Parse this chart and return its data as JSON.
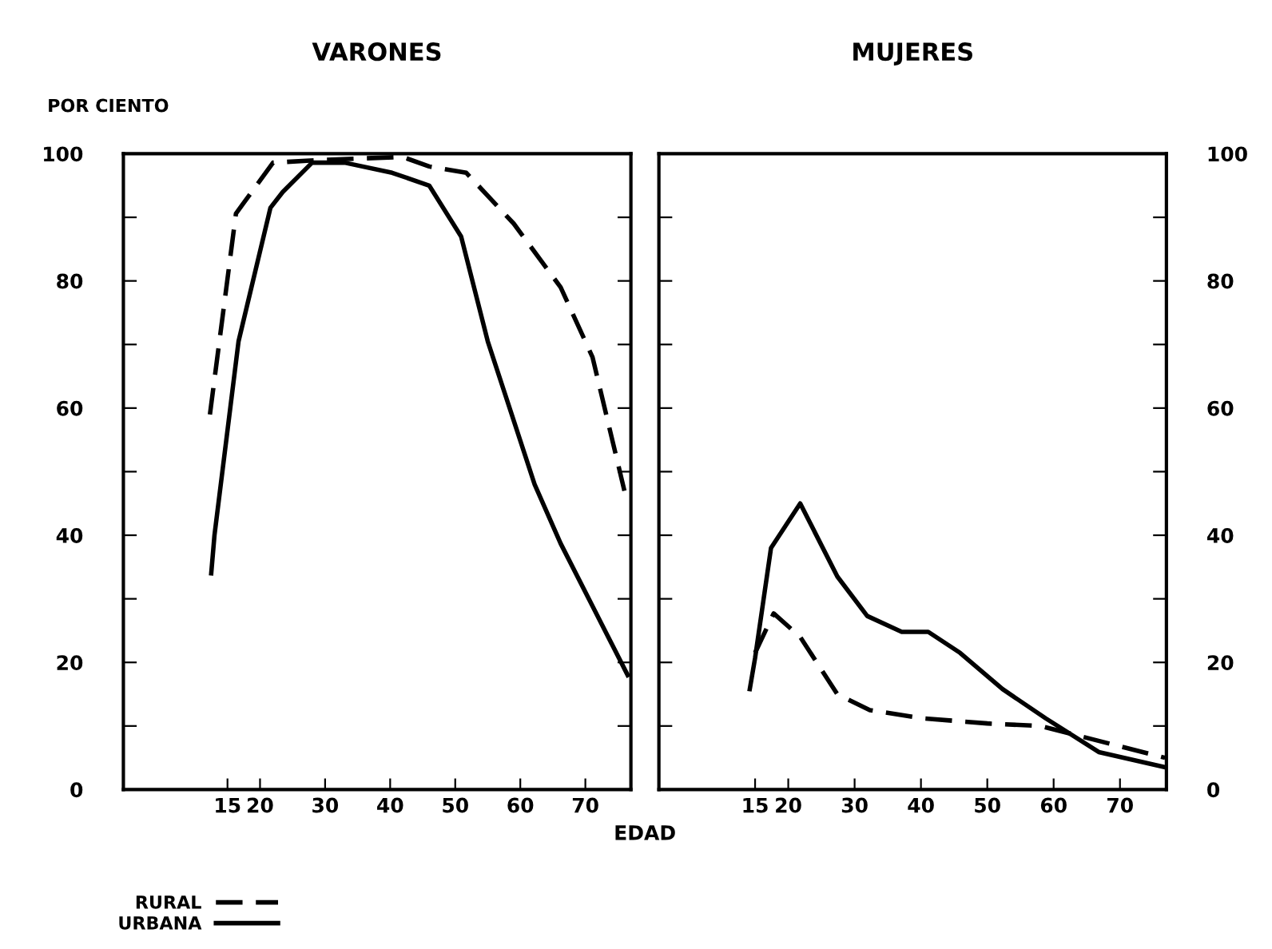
{
  "chart_data": [
    {
      "type": "line",
      "title": "VARONES",
      "ylabel": "POR CIENTO",
      "xlabel": "EDAD",
      "legend": "bottom left",
      "xlim": [
        -1,
        77
      ],
      "xticks": [
        15,
        20,
        30,
        40,
        50,
        60,
        70
      ],
      "ylim": [
        0,
        100
      ],
      "yticks": [
        0,
        {
          "value": 10,
          "label": null
        },
        20,
        {
          "value": 30,
          "label": null
        },
        40,
        {
          "value": 50,
          "label": null
        },
        60,
        {
          "value": 70,
          "label": null
        },
        80,
        {
          "value": 90,
          "label": null
        },
        100
      ],
      "series": [
        {
          "name": "RURAL",
          "color": "#000000",
          "line_style": "dashed",
          "x": [
            12.3,
            16.3,
            22,
            28.9,
            41.9,
            46,
            51.7,
            59,
            66.2,
            71.1,
            76
          ],
          "values": [
            59,
            90.6,
            98.6,
            99,
            99.5,
            98,
            97,
            89,
            79,
            68,
            47
          ]
        },
        {
          "name": "URBANA",
          "color": "#000000",
          "line_style": "solid",
          "x": [
            12.5,
            13,
            16.7,
            21.6,
            23.5,
            28,
            33,
            40.3,
            46,
            50.9,
            55,
            62.2,
            66.2,
            76.5
          ],
          "values": [
            34,
            40,
            70.5,
            91.5,
            94,
            98.6,
            98.6,
            97,
            95,
            87,
            70.5,
            48,
            38.7,
            18
          ]
        }
      ]
    },
    {
      "type": "line",
      "title": "MUJERES",
      "xlim": [
        0.5,
        77
      ],
      "xticks": [
        15,
        20,
        30,
        40,
        50,
        60,
        70
      ],
      "y2lim": [
        0,
        100
      ],
      "y2ticks": [
        0,
        {
          "value": 10,
          "label": null
        },
        20,
        {
          "value": 30,
          "label": null
        },
        40,
        {
          "value": 50,
          "label": null
        },
        60,
        {
          "value": 70,
          "label": null
        },
        80,
        {
          "value": 90,
          "label": null
        },
        100
      ],
      "series": [
        {
          "color": "#000000",
          "line_style": "dashed",
          "axis": "y2",
          "x": [
            15,
            17.8,
            21.8,
            27.4,
            32.3,
            40.3,
            50,
            58,
            64.4,
            76.8
          ],
          "values": [
            21.5,
            27.7,
            24,
            15,
            12.5,
            11.2,
            10.4,
            10,
            8.3,
            5
          ]
        },
        {
          "color": "#000000",
          "line_style": "solid",
          "axis": "y2",
          "x": [
            14.2,
            15,
            17.4,
            21.8,
            27.4,
            31.9,
            37.1,
            41.1,
            45.9,
            52.3,
            58.8,
            66.8,
            76.8
          ],
          "values": [
            15.8,
            20.7,
            38,
            45,
            33.5,
            27.3,
            24.8,
            24.8,
            21.5,
            15.8,
            11.2,
            5.9,
            3.5
          ]
        }
      ]
    }
  ]
}
